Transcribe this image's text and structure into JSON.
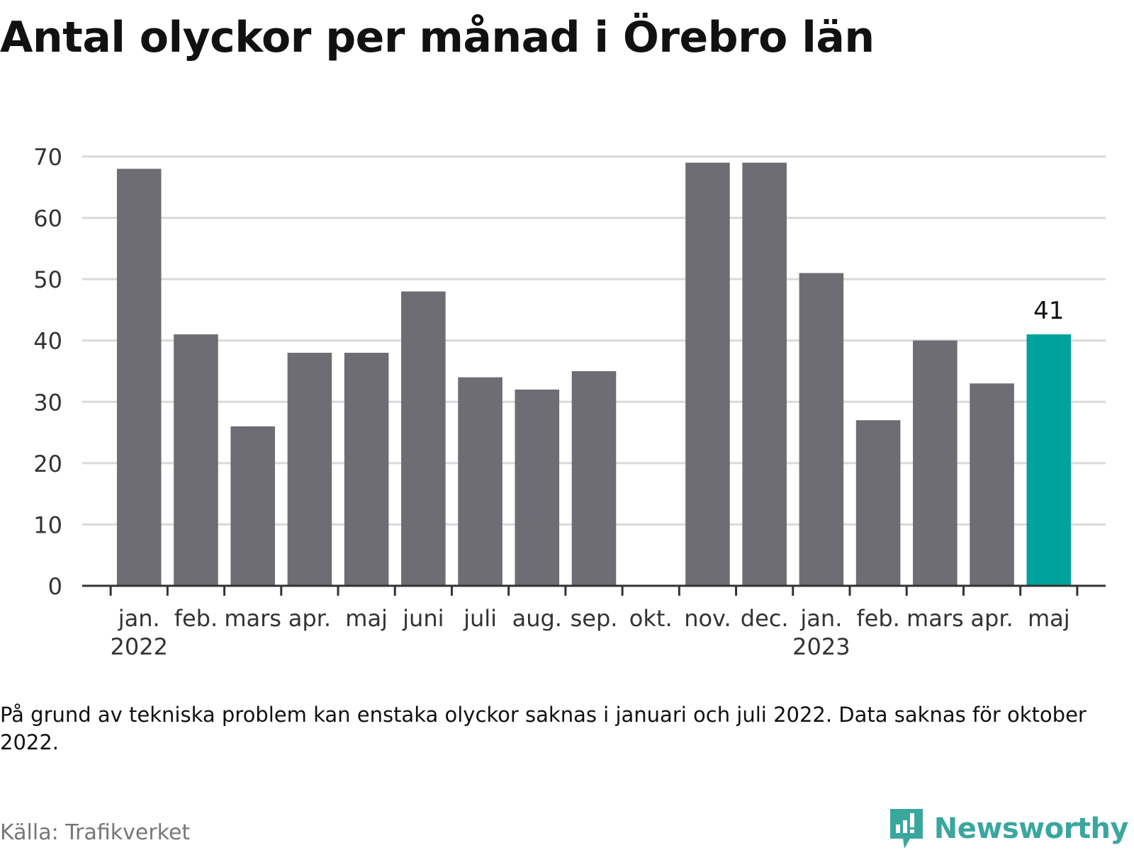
{
  "title": "Antal olyckor per månad i Örebro län",
  "note": "På grund av tekniska problem kan enstaka olyckor saknas i januari och juli 2022. Data saknas för oktober 2022.",
  "source": "Källa: Trafikverket",
  "brand": {
    "name": "Newsworthy",
    "icon": "newsworthy-chart-bubble-icon"
  },
  "colors": {
    "bar": "#6e6d74",
    "highlight": "#00a39b",
    "grid": "#d9d9d9",
    "axis": "#333333",
    "brand": "#3aa79f"
  },
  "chart_data": {
    "type": "bar",
    "categories": [
      "jan.",
      "feb.",
      "mars",
      "apr.",
      "maj",
      "juni",
      "juli",
      "aug.",
      "sep.",
      "okt.",
      "nov.",
      "dec.",
      "jan.",
      "feb.",
      "mars",
      "apr.",
      "maj"
    ],
    "year_labels": [
      {
        "index": 0,
        "label": "2022"
      },
      {
        "index": 12,
        "label": "2023"
      }
    ],
    "values": [
      68,
      41,
      26,
      38,
      38,
      48,
      34,
      32,
      35,
      null,
      69,
      69,
      51,
      27,
      40,
      33,
      41
    ],
    "highlight_index": 16,
    "highlight_label": "41",
    "yticks": [
      0,
      10,
      20,
      30,
      40,
      50,
      60,
      70
    ],
    "ylim": [
      0,
      70
    ],
    "grid": true,
    "legend": false
  }
}
